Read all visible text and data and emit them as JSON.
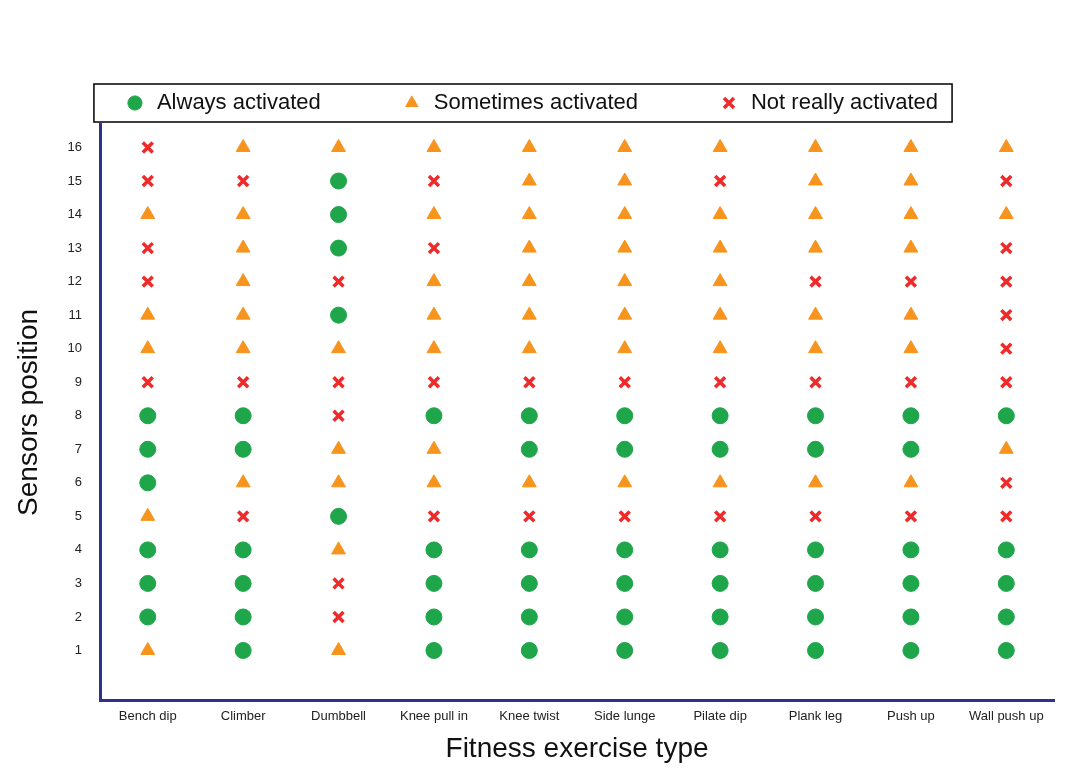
{
  "chart_data": {
    "type": "scatter",
    "xlabel": "Fitness exercise type",
    "ylabel": "Sensors position",
    "categories": [
      "Bench dip",
      "Climber",
      "Dumbbell",
      "Knee pull in",
      "Knee twist",
      "Side lunge",
      "Pilate dip",
      "Plank leg",
      "Push up",
      "Wall push up"
    ],
    "ylim": [
      -0.5,
      16.7
    ],
    "yticks": [
      1,
      2,
      3,
      4,
      5,
      6,
      7,
      8,
      9,
      10,
      11,
      12,
      13,
      14,
      15,
      16
    ],
    "grid": false,
    "legend": "top",
    "series": [
      {
        "name": "Always activated",
        "color": "#1fa64a",
        "marker": "circle",
        "x": [
          "Bench dip",
          "Bench dip",
          "Bench dip",
          "Bench dip",
          "Bench dip",
          "Bench dip",
          "Climber",
          "Climber",
          "Climber",
          "Climber",
          "Climber",
          "Climber",
          "Dumbbell",
          "Dumbbell",
          "Dumbbell",
          "Dumbbell",
          "Dumbbell",
          "Knee pull in",
          "Knee pull in",
          "Knee pull in",
          "Knee pull in",
          "Knee pull in",
          "Knee twist",
          "Knee twist",
          "Knee twist",
          "Knee twist",
          "Knee twist",
          "Knee twist",
          "Side lunge",
          "Side lunge",
          "Side lunge",
          "Side lunge",
          "Side lunge",
          "Side lunge",
          "Pilate dip",
          "Pilate dip",
          "Pilate dip",
          "Pilate dip",
          "Pilate dip",
          "Pilate dip",
          "Plank leg",
          "Plank leg",
          "Plank leg",
          "Plank leg",
          "Plank leg",
          "Plank leg",
          "Push up",
          "Push up",
          "Push up",
          "Push up",
          "Push up",
          "Push up",
          "Wall push up",
          "Wall push up",
          "Wall push up",
          "Wall push up",
          "Wall push up"
        ],
        "values": [
          8,
          7,
          6,
          4,
          3,
          2,
          8,
          7,
          4,
          3,
          2,
          1,
          15,
          14,
          13,
          11,
          5,
          8,
          4,
          3,
          2,
          1,
          8,
          7,
          4,
          3,
          2,
          1,
          8,
          7,
          4,
          3,
          2,
          1,
          8,
          7,
          4,
          3,
          2,
          1,
          8,
          7,
          4,
          3,
          2,
          1,
          8,
          7,
          4,
          3,
          2,
          1,
          8,
          4,
          3,
          2,
          1
        ]
      },
      {
        "name": "Sometimes activated",
        "color": "#f7941d",
        "marker": "triangle",
        "x": [
          "Bench dip",
          "Bench dip",
          "Bench dip",
          "Bench dip",
          "Bench dip",
          "Climber",
          "Climber",
          "Climber",
          "Climber",
          "Climber",
          "Climber",
          "Climber",
          "Dumbbell",
          "Dumbbell",
          "Dumbbell",
          "Dumbbell",
          "Dumbbell",
          "Dumbbell",
          "Knee pull in",
          "Knee pull in",
          "Knee pull in",
          "Knee pull in",
          "Knee pull in",
          "Knee pull in",
          "Knee pull in",
          "Knee twist",
          "Knee twist",
          "Knee twist",
          "Knee twist",
          "Knee twist",
          "Knee twist",
          "Knee twist",
          "Knee twist",
          "Side lunge",
          "Side lunge",
          "Side lunge",
          "Side lunge",
          "Side lunge",
          "Side lunge",
          "Side lunge",
          "Side lunge",
          "Pilate dip",
          "Pilate dip",
          "Pilate dip",
          "Pilate dip",
          "Pilate dip",
          "Pilate dip",
          "Pilate dip",
          "Plank leg",
          "Plank leg",
          "Plank leg",
          "Plank leg",
          "Plank leg",
          "Plank leg",
          "Plank leg",
          "Push up",
          "Push up",
          "Push up",
          "Push up",
          "Push up",
          "Push up",
          "Push up",
          "Wall push up",
          "Wall push up",
          "Wall push up"
        ],
        "values": [
          14,
          11,
          10,
          5,
          1,
          16,
          14,
          13,
          12,
          11,
          10,
          6,
          16,
          10,
          7,
          6,
          4,
          1,
          16,
          14,
          12,
          11,
          10,
          7,
          6,
          16,
          15,
          14,
          13,
          12,
          11,
          10,
          6,
          16,
          15,
          14,
          13,
          12,
          11,
          10,
          6,
          16,
          14,
          13,
          12,
          11,
          10,
          6,
          16,
          15,
          14,
          13,
          11,
          10,
          6,
          16,
          15,
          14,
          13,
          11,
          10,
          6,
          16,
          14,
          7
        ]
      },
      {
        "name": "Not really activated",
        "color": "#ee2a2a",
        "marker": "cross",
        "x": [
          "Bench dip",
          "Bench dip",
          "Bench dip",
          "Bench dip",
          "Bench dip",
          "Climber",
          "Climber",
          "Climber",
          "Dumbbell",
          "Dumbbell",
          "Dumbbell",
          "Dumbbell",
          "Dumbbell",
          "Knee pull in",
          "Knee pull in",
          "Knee pull in",
          "Knee pull in",
          "Knee twist",
          "Knee twist",
          "Side lunge",
          "Side lunge",
          "Pilate dip",
          "Pilate dip",
          "Pilate dip",
          "Plank leg",
          "Plank leg",
          "Plank leg",
          "Push up",
          "Push up",
          "Push up",
          "Wall push up",
          "Wall push up",
          "Wall push up",
          "Wall push up",
          "Wall push up",
          "Wall push up",
          "Wall push up",
          "Wall push up"
        ],
        "values": [
          16,
          15,
          13,
          12,
          9,
          15,
          9,
          5,
          12,
          9,
          8,
          3,
          2,
          15,
          13,
          9,
          5,
          9,
          5,
          9,
          5,
          15,
          9,
          5,
          12,
          9,
          5,
          12,
          9,
          5,
          15,
          13,
          12,
          11,
          10,
          9,
          6,
          5
        ]
      }
    ]
  }
}
